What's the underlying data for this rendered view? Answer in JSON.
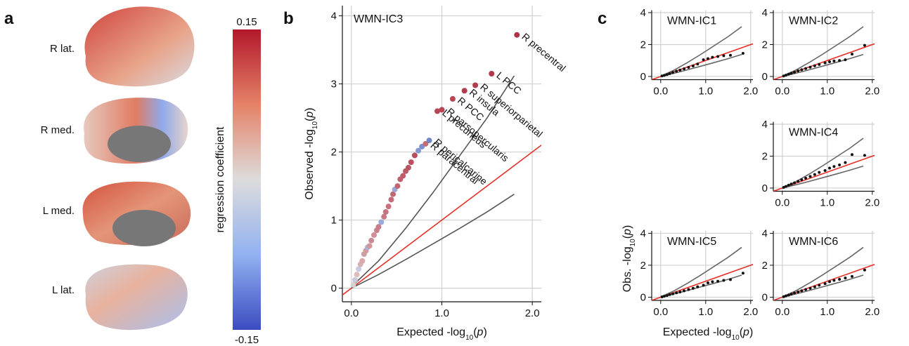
{
  "panel_labels": [
    "a",
    "b",
    "c"
  ],
  "brain_labels": [
    "R lat.",
    "R med.",
    "L med.",
    "L lat."
  ],
  "colorbar": {
    "label": "regression coefficient",
    "ticks": [
      0.15,
      -0.15
    ]
  },
  "chart_data": [
    {
      "type": "scatter",
      "title": "WMN-IC3",
      "xlabel": [
        "Expected -log",
        "10",
        "(",
        "p",
        ")"
      ],
      "ylabel": [
        "Observed -log",
        "10",
        "(",
        "p",
        ")"
      ],
      "xlim": [
        -0.1,
        2.1
      ],
      "ylim": [
        -0.2,
        4.15
      ],
      "xticks": [
        {
          "value": 0,
          "label": "0.0"
        },
        {
          "value": 1,
          "label": "1.0"
        },
        {
          "value": 2,
          "label": "2.0"
        }
      ],
      "yticks": [
        0,
        1,
        2,
        3,
        4
      ],
      "grid": true,
      "lines": [
        {
          "color": "#e8302a",
          "x": [
            -0.1,
            2.1
          ],
          "values": [
            -0.1,
            2.1
          ]
        },
        {
          "color": "#555555",
          "x": [
            0,
            0.3,
            0.6,
            0.9,
            1.2,
            1.5,
            1.8
          ],
          "values": [
            0.02,
            0.4,
            0.88,
            1.4,
            1.95,
            2.5,
            3.12
          ]
        },
        {
          "color": "#555555",
          "x": [
            0,
            0.3,
            0.6,
            0.9,
            1.2,
            1.5,
            1.8
          ],
          "values": [
            0,
            0.2,
            0.42,
            0.65,
            0.88,
            1.12,
            1.38
          ]
        }
      ],
      "x": [
        0.02,
        0.04,
        0.06,
        0.08,
        0.1,
        0.12,
        0.14,
        0.16,
        0.18,
        0.2,
        0.22,
        0.25,
        0.28,
        0.3,
        0.33,
        0.36,
        0.38,
        0.41,
        0.44,
        0.46,
        0.48,
        0.51,
        0.54,
        0.57,
        0.6,
        0.63,
        0.66,
        0.7,
        0.74,
        0.78,
        0.82,
        0.86,
        0.95,
        1.0,
        1.12,
        1.25,
        1.37,
        1.55,
        1.83
      ],
      "values": [
        0.05,
        0.12,
        0.2,
        0.28,
        0.35,
        0.4,
        0.5,
        0.55,
        0.6,
        0.62,
        0.7,
        0.78,
        0.85,
        0.9,
        0.97,
        1.05,
        1.12,
        1.2,
        1.3,
        1.38,
        1.45,
        1.5,
        1.6,
        1.65,
        1.72,
        1.77,
        1.85,
        1.95,
        2.02,
        2.08,
        2.12,
        2.17,
        2.6,
        2.62,
        2.78,
        2.9,
        2.98,
        3.15,
        3.72
      ],
      "colors": [
        "#d9d0d0",
        "#c8c8d6",
        "#dcbcbc",
        "#c8cbe0",
        "#d8b0b2",
        "#d8a8ab",
        "#c9a0a6",
        "#d39aa0",
        "#a9b3d8",
        "#d3969c",
        "#c88a92",
        "#cf9096",
        "#c8828b",
        "#c77e88",
        "#9aa9d6",
        "#c87a84",
        "#c37480",
        "#c9707c",
        "#c36c78",
        "#bf6874",
        "#9aa6d6",
        "#c26471",
        "#bd606d",
        "#c05c6a",
        "#bb5866",
        "#b95462",
        "#bc505f",
        "#b84d5c",
        "#8499d0",
        "#7a90cc",
        "#c86a75",
        "#7088c8",
        "#b84454",
        "#b84454",
        "#b84454",
        "#b23c4c",
        "#b23c4c",
        "#b03848",
        "#ae3444"
      ],
      "point_labels": [
        null,
        null,
        null,
        null,
        null,
        null,
        null,
        null,
        null,
        null,
        null,
        null,
        null,
        null,
        null,
        null,
        null,
        null,
        null,
        null,
        null,
        null,
        null,
        null,
        null,
        null,
        null,
        null,
        null,
        null,
        "R paracentral",
        "R pericalcarine",
        "L precuneus",
        "R parsopercularis",
        "R PCC",
        "R insula",
        "R superiorparietal",
        "L PCC",
        "R precentral"
      ]
    },
    {
      "type": "scatter",
      "title": "WMN-IC1",
      "color": "#111111",
      "xlim": [
        -0.2,
        2.05
      ],
      "ylim": [
        -0.2,
        4.15
      ],
      "xticks": [
        {
          "value": 0,
          "label": "0.0"
        },
        {
          "value": 1,
          "label": "1.0"
        },
        {
          "value": 2,
          "label": "2.0"
        }
      ],
      "yticks": [
        0,
        2,
        4
      ],
      "grid": true,
      "lines": [
        {
          "color": "#e8302a",
          "x": [
            -0.2,
            2.05
          ],
          "values": [
            -0.2,
            2.05
          ]
        },
        {
          "color": "#666666",
          "x": [
            0,
            0.3,
            0.6,
            0.9,
            1.2,
            1.5,
            1.8
          ],
          "values": [
            0.02,
            0.4,
            0.88,
            1.4,
            1.95,
            2.5,
            3.12
          ]
        },
        {
          "color": "#666666",
          "x": [
            0,
            0.3,
            0.6,
            0.9,
            1.2,
            1.5,
            1.8
          ],
          "values": [
            0,
            0.2,
            0.42,
            0.65,
            0.88,
            1.12,
            1.38
          ]
        }
      ],
      "x": [
        0.03,
        0.08,
        0.14,
        0.2,
        0.27,
        0.35,
        0.43,
        0.52,
        0.62,
        0.72,
        0.82,
        0.95,
        1.05,
        1.15,
        1.27,
        1.4,
        1.55,
        1.83
      ],
      "values": [
        0.03,
        0.07,
        0.12,
        0.18,
        0.25,
        0.33,
        0.4,
        0.48,
        0.57,
        0.66,
        0.78,
        1.05,
        1.12,
        1.2,
        1.25,
        1.3,
        1.33,
        1.45
      ]
    },
    {
      "type": "scatter",
      "title": "WMN-IC2",
      "color": "#111111",
      "xlim": [
        -0.2,
        2.05
      ],
      "ylim": [
        -0.2,
        4.15
      ],
      "xticks": [
        {
          "value": 0,
          "label": "0.0"
        },
        {
          "value": 1,
          "label": "1.0"
        },
        {
          "value": 2,
          "label": "2.0"
        }
      ],
      "yticks": [
        0,
        2,
        4
      ],
      "grid": true,
      "lines": [
        {
          "color": "#e8302a",
          "x": [
            -0.2,
            2.05
          ],
          "values": [
            -0.2,
            2.05
          ]
        },
        {
          "color": "#666666",
          "x": [
            0,
            0.3,
            0.6,
            0.9,
            1.2,
            1.5,
            1.8
          ],
          "values": [
            0.02,
            0.4,
            0.88,
            1.4,
            1.95,
            2.5,
            3.12
          ]
        },
        {
          "color": "#666666",
          "x": [
            0,
            0.3,
            0.6,
            0.9,
            1.2,
            1.5,
            1.8
          ],
          "values": [
            0,
            0.2,
            0.42,
            0.65,
            0.88,
            1.12,
            1.38
          ]
        }
      ],
      "x": [
        0.03,
        0.08,
        0.14,
        0.2,
        0.27,
        0.35,
        0.43,
        0.52,
        0.62,
        0.72,
        0.82,
        0.95,
        1.05,
        1.15,
        1.27,
        1.4,
        1.55,
        1.83
      ],
      "values": [
        0.03,
        0.08,
        0.14,
        0.2,
        0.27,
        0.35,
        0.42,
        0.5,
        0.58,
        0.67,
        0.75,
        0.85,
        0.92,
        0.97,
        1.0,
        1.05,
        1.4,
        1.95
      ]
    },
    {
      "type": "scatter",
      "title": "WMN-IC4",
      "color": "#111111",
      "xlim": [
        -0.2,
        2.05
      ],
      "ylim": [
        -0.2,
        4.15
      ],
      "xticks": [
        {
          "value": 0,
          "label": "0.0"
        },
        {
          "value": 1,
          "label": "1.0"
        },
        {
          "value": 2,
          "label": "2.0"
        }
      ],
      "yticks": [
        0,
        2,
        4
      ],
      "grid": true,
      "lines": [
        {
          "color": "#e8302a",
          "x": [
            -0.2,
            2.05
          ],
          "values": [
            -0.2,
            2.05
          ]
        },
        {
          "color": "#666666",
          "x": [
            0,
            0.3,
            0.6,
            0.9,
            1.2,
            1.5,
            1.8
          ],
          "values": [
            0.02,
            0.4,
            0.88,
            1.4,
            1.95,
            2.5,
            3.12
          ]
        },
        {
          "color": "#666666",
          "x": [
            0,
            0.3,
            0.6,
            0.9,
            1.2,
            1.5,
            1.8
          ],
          "values": [
            0,
            0.2,
            0.42,
            0.65,
            0.88,
            1.12,
            1.38
          ]
        }
      ],
      "x": [
        0.03,
        0.08,
        0.14,
        0.2,
        0.27,
        0.35,
        0.43,
        0.52,
        0.62,
        0.72,
        0.82,
        0.95,
        1.05,
        1.15,
        1.27,
        1.4,
        1.55,
        1.83
      ],
      "values": [
        0.04,
        0.1,
        0.18,
        0.25,
        0.33,
        0.42,
        0.52,
        0.62,
        0.73,
        0.85,
        0.98,
        1.1,
        1.25,
        1.35,
        1.45,
        1.6,
        2.1,
        2.05
      ]
    },
    {
      "type": "scatter",
      "title": "WMN-IC5",
      "color": "#111111",
      "xlim": [
        -0.2,
        2.05
      ],
      "ylim": [
        -0.2,
        4.15
      ],
      "xlabel": [
        "Expected -log",
        "10",
        "(",
        "p",
        ")"
      ],
      "ylabel": [
        "Obs. -log",
        "10",
        "(",
        "p",
        ")"
      ],
      "xticks": [
        {
          "value": 0,
          "label": "0.0"
        },
        {
          "value": 1,
          "label": "1.0"
        },
        {
          "value": 2,
          "label": "2.0"
        }
      ],
      "yticks": [
        0,
        2,
        4
      ],
      "grid": true,
      "lines": [
        {
          "color": "#e8302a",
          "x": [
            -0.2,
            2.05
          ],
          "values": [
            -0.2,
            2.05
          ]
        },
        {
          "color": "#666666",
          "x": [
            0,
            0.3,
            0.6,
            0.9,
            1.2,
            1.5,
            1.8
          ],
          "values": [
            0.02,
            0.4,
            0.88,
            1.4,
            1.95,
            2.5,
            3.12
          ]
        },
        {
          "color": "#666666",
          "x": [
            0,
            0.3,
            0.6,
            0.9,
            1.2,
            1.5,
            1.8
          ],
          "values": [
            0,
            0.2,
            0.42,
            0.65,
            0.88,
            1.12,
            1.38
          ]
        }
      ],
      "x": [
        0.03,
        0.08,
        0.14,
        0.2,
        0.27,
        0.35,
        0.43,
        0.52,
        0.62,
        0.72,
        0.82,
        0.95,
        1.05,
        1.15,
        1.27,
        1.4,
        1.55,
        1.83
      ],
      "values": [
        0.02,
        0.06,
        0.1,
        0.16,
        0.21,
        0.27,
        0.33,
        0.4,
        0.48,
        0.56,
        0.65,
        0.75,
        0.9,
        0.97,
        1.0,
        1.05,
        1.1,
        1.5
      ]
    },
    {
      "type": "scatter",
      "title": "WMN-IC6",
      "color": "#111111",
      "xlim": [
        -0.2,
        2.05
      ],
      "ylim": [
        -0.2,
        4.15
      ],
      "xticks": [
        {
          "value": 0,
          "label": "0.0"
        },
        {
          "value": 1,
          "label": "1.0"
        },
        {
          "value": 2,
          "label": "2.0"
        }
      ],
      "yticks": [
        0,
        2,
        4
      ],
      "grid": true,
      "lines": [
        {
          "color": "#e8302a",
          "x": [
            -0.2,
            2.05
          ],
          "values": [
            -0.2,
            2.05
          ]
        },
        {
          "color": "#666666",
          "x": [
            0,
            0.3,
            0.6,
            0.9,
            1.2,
            1.5,
            1.8
          ],
          "values": [
            0.02,
            0.4,
            0.88,
            1.4,
            1.95,
            2.5,
            3.12
          ]
        },
        {
          "color": "#666666",
          "x": [
            0,
            0.3,
            0.6,
            0.9,
            1.2,
            1.5,
            1.8
          ],
          "values": [
            0,
            0.2,
            0.42,
            0.65,
            0.88,
            1.12,
            1.38
          ]
        }
      ],
      "x": [
        0.03,
        0.08,
        0.14,
        0.2,
        0.27,
        0.35,
        0.43,
        0.52,
        0.62,
        0.72,
        0.82,
        0.95,
        1.05,
        1.15,
        1.27,
        1.4,
        1.55,
        1.83
      ],
      "values": [
        0.03,
        0.08,
        0.13,
        0.19,
        0.26,
        0.33,
        0.4,
        0.48,
        0.56,
        0.65,
        0.75,
        0.85,
        0.97,
        1.05,
        1.12,
        1.2,
        1.3,
        1.7
      ]
    }
  ]
}
